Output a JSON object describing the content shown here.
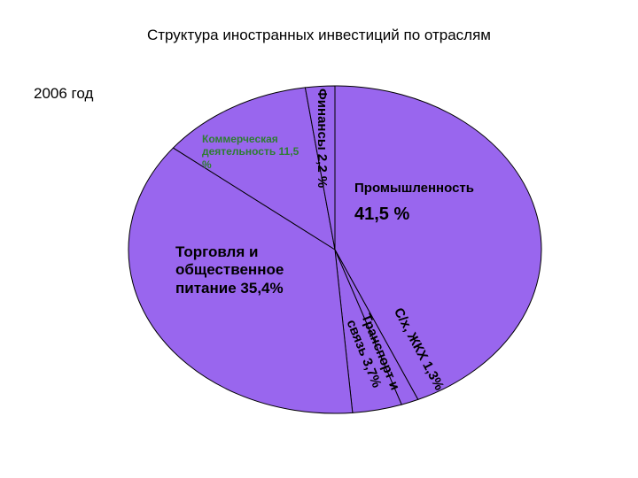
{
  "chart_data": {
    "type": "pie",
    "title": "Структура иностранных инвестиций по отраслям",
    "subtitle": "2006 год",
    "categories": [
      "Промышленность",
      "С/х, ЖКХ",
      "Транспорт и связь",
      "Торговля и общественное питание",
      "Коммерческая деятельность",
      "Финансы"
    ],
    "values": [
      41.5,
      1.3,
      3.7,
      35.4,
      11.5,
      2.2
    ],
    "value_labels": [
      "41,5 %",
      "1,3%",
      "3,7%",
      "35,4%",
      "11,5 %",
      "2,2 %"
    ],
    "color": "#9966ee"
  }
}
